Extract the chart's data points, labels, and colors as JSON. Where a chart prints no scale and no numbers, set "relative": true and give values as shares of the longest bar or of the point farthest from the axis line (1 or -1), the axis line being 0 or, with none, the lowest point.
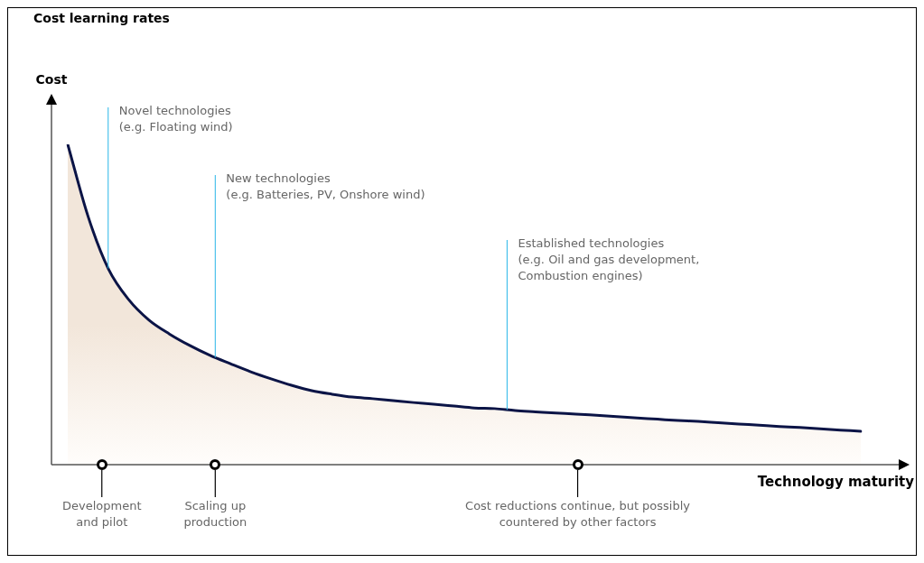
{
  "chart_data": {
    "type": "area",
    "title": "Cost learning rates",
    "ylabel": "Cost",
    "xlabel": "Technology maturity",
    "relative": true,
    "legend": false,
    "categories": [
      null,
      null,
      null,
      null,
      null,
      null,
      null,
      null,
      null,
      null,
      null,
      null,
      null,
      null,
      null,
      null,
      null,
      null,
      null,
      null,
      null,
      null,
      null,
      null,
      null,
      null,
      null,
      null,
      null,
      null,
      null,
      null,
      null,
      null,
      null,
      null,
      null,
      null,
      null,
      null
    ],
    "series": [
      {
        "color": "#0b1446",
        "values": [
          1.0,
          0.775,
          0.611,
          0.515,
          0.451,
          0.408,
          0.372,
          0.341,
          0.315,
          0.29,
          0.268,
          0.248,
          0.231,
          0.22,
          0.211,
          0.206,
          0.2,
          0.194,
          0.189,
          0.183,
          0.177,
          0.175,
          0.169,
          0.165,
          0.161,
          0.158,
          0.154,
          0.15,
          0.146,
          0.142,
          0.138,
          0.135,
          0.131,
          0.127,
          0.123,
          0.119,
          0.116,
          0.112,
          0.108,
          0.104
        ]
      }
    ],
    "annotations": [
      "Novel technologies\n(e.g. Floating wind)",
      "New technologies\n(e.g. Batteries, PV, Onshore wind)",
      "Established technologies\n(e.g. Oil and gas development,\nCombustion engines)",
      "Development\nand pilot",
      "Scaling up\nproduction",
      "Cost reductions continue, but possibly\ncountered by other factors"
    ]
  }
}
